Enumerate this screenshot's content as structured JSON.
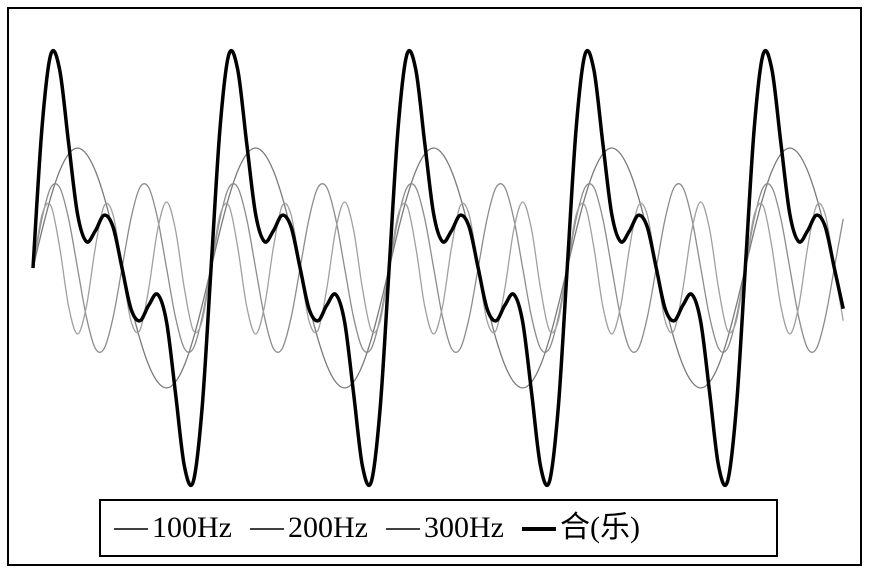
{
  "chart_data": {
    "type": "line",
    "x": [
      0,
      0.5,
      1,
      1.5,
      2,
      2.5,
      3,
      3.5,
      4,
      4.5,
      5,
      5.5,
      6,
      6.5,
      7,
      7.5,
      8,
      8.5,
      9,
      9.5,
      10,
      10.5,
      11,
      11.5,
      12,
      12.5,
      13,
      13.5,
      14,
      14.5,
      15,
      15.5,
      16,
      16.5,
      17,
      17.5,
      18,
      18.5,
      19,
      19.5,
      20,
      20.5,
      21,
      21.5,
      22,
      22.5,
      23,
      23.5,
      24,
      24.5,
      25,
      25.5,
      26,
      26.5,
      27,
      27.5,
      28,
      28.5,
      29,
      29.5,
      30,
      30.5,
      31,
      31.5,
      32,
      32.5,
      33,
      33.5,
      34,
      34.5,
      35,
      35.5,
      36,
      36.5,
      37,
      37.5,
      38,
      38.5,
      39,
      39.5,
      40,
      40.5,
      41,
      41.5,
      42,
      42.5,
      43,
      43.5,
      44,
      44.5,
      45,
      45.5
    ],
    "xlim": [
      0,
      45.6
    ],
    "ylim": [
      -1.9,
      1.9
    ],
    "series": [
      {
        "name": "100Hz",
        "color": "#7a7a7a",
        "width": 1.3,
        "values": [
          0,
          0.31,
          0.59,
          0.81,
          0.95,
          1,
          0.95,
          0.81,
          0.59,
          0.31,
          0,
          -0.31,
          -0.59,
          -0.81,
          -0.95,
          -1,
          -0.95,
          -0.81,
          -0.59,
          -0.31,
          0,
          0.31,
          0.59,
          0.81,
          0.95,
          1,
          0.95,
          0.81,
          0.59,
          0.31,
          0,
          -0.31,
          -0.59,
          -0.81,
          -0.95,
          -1,
          -0.95,
          -0.81,
          -0.59,
          -0.31,
          0,
          0.31,
          0.59,
          0.81,
          0.95,
          1,
          0.95,
          0.81,
          0.59,
          0.31,
          0,
          -0.31,
          -0.59,
          -0.81,
          -0.95,
          -1,
          -0.95,
          -0.81,
          -0.59,
          -0.31,
          0,
          0.31,
          0.59,
          0.81,
          0.95,
          1,
          0.95,
          0.81,
          0.59,
          0.31,
          0,
          -0.31,
          -0.59,
          -0.81,
          -0.95,
          -1,
          -0.95,
          -0.81,
          -0.59,
          -0.31,
          0,
          0.31,
          0.59,
          0.81,
          0.95,
          1,
          0.95,
          0.81,
          0.59,
          0.31,
          0,
          -0.31
        ]
      },
      {
        "name": "200Hz",
        "color": "#8c8c8c",
        "width": 1.3,
        "values": [
          0,
          0.41,
          0.67,
          0.67,
          0.41,
          0,
          -0.41,
          -0.67,
          -0.67,
          -0.41,
          0,
          0.41,
          0.67,
          0.67,
          0.41,
          0,
          -0.41,
          -0.67,
          -0.67,
          -0.41,
          0,
          0.41,
          0.67,
          0.67,
          0.41,
          0,
          -0.41,
          -0.67,
          -0.67,
          -0.41,
          0,
          0.41,
          0.67,
          0.67,
          0.41,
          0,
          -0.41,
          -0.67,
          -0.67,
          -0.41,
          0,
          0.41,
          0.67,
          0.67,
          0.41,
          0,
          -0.41,
          -0.67,
          -0.67,
          -0.41,
          0,
          0.41,
          0.67,
          0.67,
          0.41,
          0,
          -0.41,
          -0.67,
          -0.67,
          -0.41,
          0,
          0.41,
          0.67,
          0.67,
          0.41,
          0,
          -0.41,
          -0.67,
          -0.67,
          -0.41,
          0,
          0.41,
          0.67,
          0.67,
          0.41,
          0,
          -0.41,
          -0.67,
          -0.67,
          -0.41,
          0,
          0.41,
          0.67,
          0.67,
          0.41,
          0,
          -0.41,
          -0.67,
          -0.67,
          -0.41,
          0,
          0.41
        ]
      },
      {
        "name": "300Hz",
        "color": "#a0a0a0",
        "width": 1.3,
        "values": [
          0,
          0.44,
          0.52,
          0.17,
          -0.32,
          -0.55,
          -0.32,
          0.17,
          0.52,
          0.44,
          0,
          -0.44,
          -0.52,
          -0.17,
          0.32,
          0.55,
          0.32,
          -0.17,
          -0.52,
          -0.44,
          0,
          0.44,
          0.52,
          0.17,
          -0.32,
          -0.55,
          -0.32,
          0.17,
          0.52,
          0.44,
          0,
          -0.44,
          -0.52,
          -0.17,
          0.32,
          0.55,
          0.32,
          -0.17,
          -0.52,
          -0.44,
          0,
          0.44,
          0.52,
          0.17,
          -0.32,
          -0.55,
          -0.32,
          0.17,
          0.52,
          0.44,
          0,
          -0.44,
          -0.52,
          -0.17,
          0.32,
          0.55,
          0.32,
          -0.17,
          -0.52,
          -0.44,
          0,
          0.44,
          0.52,
          0.17,
          -0.32,
          -0.55,
          -0.32,
          0.17,
          0.52,
          0.44,
          0,
          -0.44,
          -0.52,
          -0.17,
          0.32,
          0.55,
          0.32,
          -0.17,
          -0.52,
          -0.44,
          0,
          0.44,
          0.52,
          0.17,
          -0.32,
          -0.55,
          -0.32,
          0.17,
          0.52,
          0.44,
          0,
          -0.44
        ]
      },
      {
        "name": "合(乐)",
        "color": "#000000",
        "width": 3.5,
        "values": [
          0,
          1.16,
          1.78,
          1.65,
          1.04,
          0.45,
          0.22,
          0.31,
          0.44,
          0.34,
          0,
          -0.34,
          -0.44,
          -0.31,
          -0.22,
          -0.45,
          -1.04,
          -1.65,
          -1.78,
          -1.16,
          0,
          1.16,
          1.78,
          1.65,
          1.04,
          0.45,
          0.22,
          0.31,
          0.44,
          0.34,
          0,
          -0.34,
          -0.44,
          -0.31,
          -0.22,
          -0.45,
          -1.04,
          -1.65,
          -1.78,
          -1.16,
          0,
          1.16,
          1.78,
          1.65,
          1.04,
          0.45,
          0.22,
          0.31,
          0.44,
          0.34,
          0,
          -0.34,
          -0.44,
          -0.31,
          -0.22,
          -0.45,
          -1.04,
          -1.65,
          -1.78,
          -1.16,
          0,
          1.16,
          1.78,
          1.65,
          1.04,
          0.45,
          0.22,
          0.31,
          0.44,
          0.34,
          0,
          -0.34,
          -0.44,
          -0.31,
          -0.22,
          -0.45,
          -1.04,
          -1.65,
          -1.78,
          -1.16,
          0,
          1.16,
          1.78,
          1.65,
          1.04,
          0.45,
          0.22,
          0.31,
          0.44,
          0.34,
          0,
          -0.34
        ]
      }
    ]
  }
}
